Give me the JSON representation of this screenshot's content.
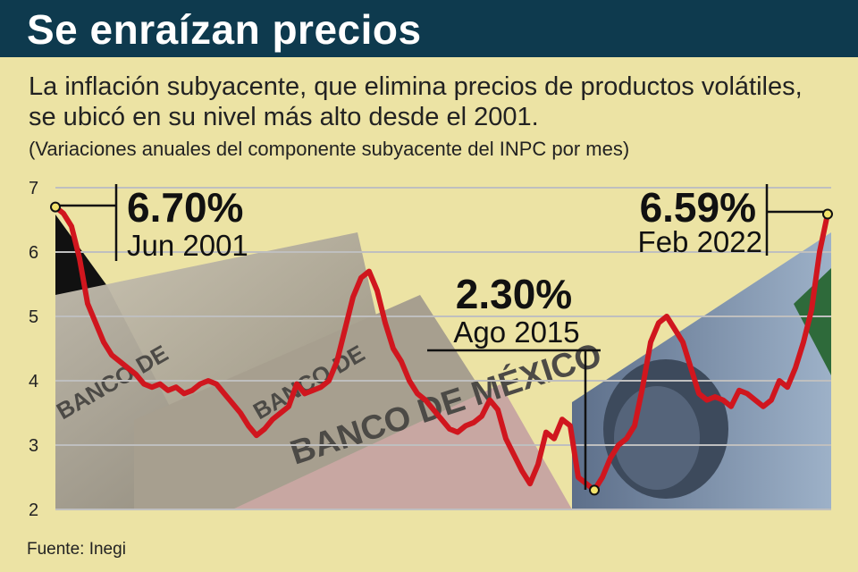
{
  "header": {
    "title": "Se enraízan precios",
    "subtitle": "La inflación subyacente, que elimina precios de productos volátiles, se ubicó en su nivel más alto desde el 2001.",
    "note": "(Variaciones anuales del componente subyacente del INPC por mes)"
  },
  "source": "Fuente: Inegi",
  "colors": {
    "header_bg": "#0e3a4e",
    "background": "#ece3a4",
    "line": "#d0161e",
    "marker": "#f3e36b"
  },
  "chart_data": {
    "type": "line",
    "title": "Se enraízan precios",
    "xlabel": "",
    "ylabel": "",
    "ylim": [
      2,
      7
    ],
    "yticks": [
      2,
      3,
      4,
      5,
      6,
      7
    ],
    "grid": true,
    "series": [
      {
        "values": [
          6.7,
          6.6,
          6.4,
          5.9,
          5.2,
          4.9,
          4.6,
          4.4,
          4.3,
          4.2,
          4.1,
          3.95,
          3.9,
          3.95,
          3.85,
          3.9,
          3.8,
          3.85,
          3.95,
          4.0,
          3.95,
          3.8,
          3.65,
          3.5,
          3.3,
          3.15,
          3.25,
          3.4,
          3.5,
          3.6,
          3.95,
          3.8,
          3.85,
          3.9,
          4.0,
          4.3,
          4.8,
          5.3,
          5.6,
          5.7,
          5.4,
          4.9,
          4.5,
          4.3,
          4.0,
          3.8,
          3.7,
          3.55,
          3.4,
          3.25,
          3.2,
          3.3,
          3.35,
          3.45,
          3.7,
          3.55,
          3.1,
          2.85,
          2.6,
          2.4,
          2.7,
          3.2,
          3.1,
          3.4,
          3.3,
          2.5,
          2.4,
          2.3,
          2.5,
          2.8,
          3.0,
          3.1,
          3.3,
          3.9,
          4.6,
          4.9,
          5.0,
          4.8,
          4.6,
          4.2,
          3.8,
          3.7,
          3.75,
          3.7,
          3.6,
          3.85,
          3.8,
          3.7,
          3.6,
          3.7,
          4.0,
          3.9,
          4.2,
          4.6,
          5.1,
          6.0,
          6.59
        ]
      }
    ],
    "annotations": [
      {
        "value": "6.70%",
        "date": "Jun 2001",
        "y": 6.7
      },
      {
        "value": "2.30%",
        "date": "Ago 2015",
        "y": 2.3
      },
      {
        "value": "6.59%",
        "date": "Feb 2022",
        "y": 6.59
      }
    ]
  }
}
